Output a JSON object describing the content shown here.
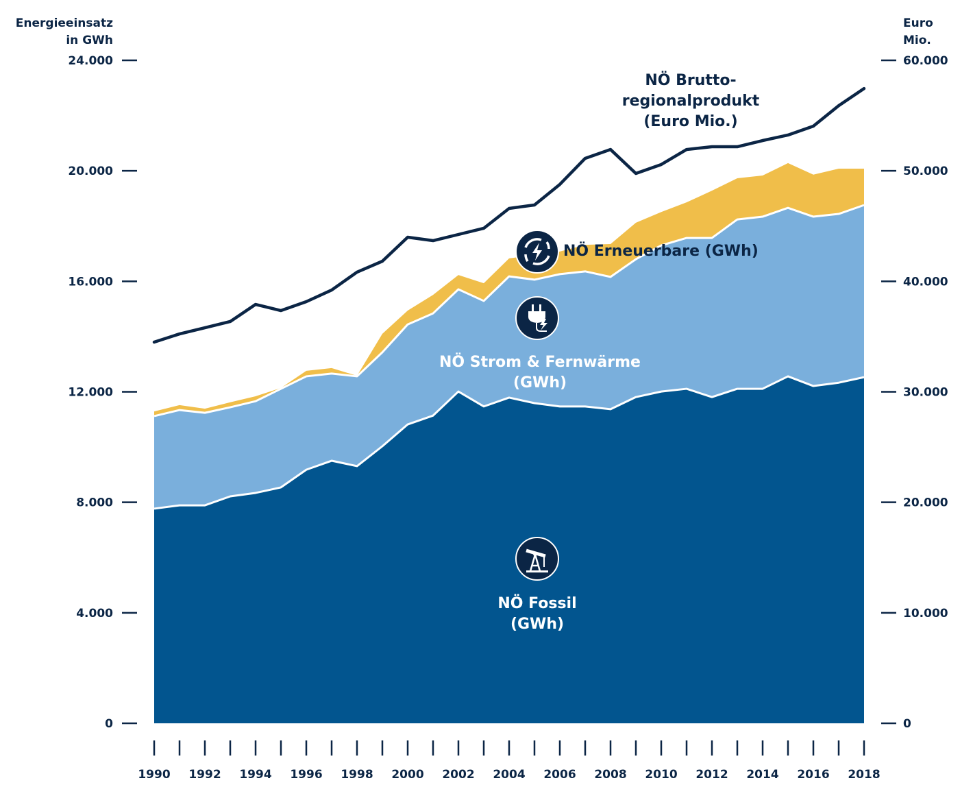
{
  "chart_data": {
    "type": "area",
    "stacked": true,
    "x": [
      1990,
      1991,
      1992,
      1993,
      1994,
      1995,
      1996,
      1997,
      1998,
      1999,
      2000,
      2001,
      2002,
      2003,
      2004,
      2005,
      2006,
      2007,
      2008,
      2009,
      2010,
      2011,
      2012,
      2013,
      2014,
      2015,
      2016,
      2017,
      2018
    ],
    "x_tick_labels": [
      "1990",
      "1992",
      "1994",
      "1996",
      "1998",
      "2000",
      "2002",
      "2004",
      "2006",
      "2008",
      "2010",
      "2012",
      "2014",
      "2016",
      "2018"
    ],
    "ylabel_left": [
      "Energieeinsatz",
      "in GWh"
    ],
    "ylabel_right": [
      "Euro",
      "Mio."
    ],
    "ylim_left": [
      0,
      24000
    ],
    "ylim_right": [
      0,
      60000
    ],
    "y_ticks_left": [
      "0",
      "4.000",
      "8.000",
      "12.000",
      "16.000",
      "20.000",
      "24.000"
    ],
    "y_ticks_right": [
      "0",
      "10.000",
      "20.000",
      "30.000",
      "40.000",
      "50.000",
      "60.000"
    ],
    "grid": false,
    "series": [
      {
        "name": "NÖ Fossil (GWh)",
        "label_lines": [
          "NÖ Fossil",
          "(GWh)"
        ],
        "axis": "left",
        "color": "#02558f",
        "icon": "oil-pump-icon",
        "values": [
          7770,
          7890,
          7890,
          8215,
          8340,
          8540,
          9180,
          9505,
          9310,
          10030,
          10820,
          11140,
          12010,
          11470,
          11790,
          11590,
          11470,
          11470,
          11370,
          11810,
          12010,
          12110,
          11810,
          12110,
          12110,
          12560,
          12210,
          12330,
          12530
        ]
      },
      {
        "name": "NÖ Strom & Fernwärme (GWh)",
        "label_lines": [
          "NÖ Strom & Fernwärme",
          "(GWh)"
        ],
        "axis": "left",
        "color": "#7aafdc",
        "icon": "power-plug-icon",
        "values": [
          3350,
          3450,
          3350,
          3225,
          3320,
          3570,
          3380,
          3155,
          3250,
          3400,
          3620,
          3700,
          3700,
          3820,
          4390,
          4470,
          4790,
          4890,
          4790,
          4990,
          5290,
          5460,
          5760,
          6130,
          6230,
          6100,
          6130,
          6110,
          6230
        ]
      },
      {
        "name": "NÖ Erneuerbare (GWh)",
        "label_lines": [
          "NÖ Erneuerbare (GWh)"
        ],
        "axis": "left",
        "color": "#f0be4a",
        "icon": "renewable-cycle-icon",
        "values": [
          170,
          180,
          150,
          180,
          180,
          30,
          200,
          200,
          20,
          670,
          500,
          670,
          520,
          640,
          650,
          890,
          820,
          960,
          1190,
          1320,
          1210,
          1290,
          1710,
          1490,
          1490,
          1620,
          1520,
          1640,
          1320
        ]
      },
      {
        "name": "NÖ Bruttoregionalprodukt (Euro Mio.)",
        "label_lines": [
          "NÖ Brutto-",
          "regionalprodukt",
          "(Euro Mio.)"
        ],
        "axis": "right",
        "type": "line",
        "color": "#0b2545",
        "values": [
          34500,
          35240,
          35800,
          36360,
          37910,
          37350,
          38160,
          39210,
          40830,
          41820,
          43990,
          43680,
          44240,
          44800,
          46600,
          46910,
          48770,
          51130,
          51930,
          49760,
          50570,
          51930,
          52180,
          52180,
          52740,
          53240,
          54040,
          55900,
          57450
        ]
      }
    ]
  }
}
